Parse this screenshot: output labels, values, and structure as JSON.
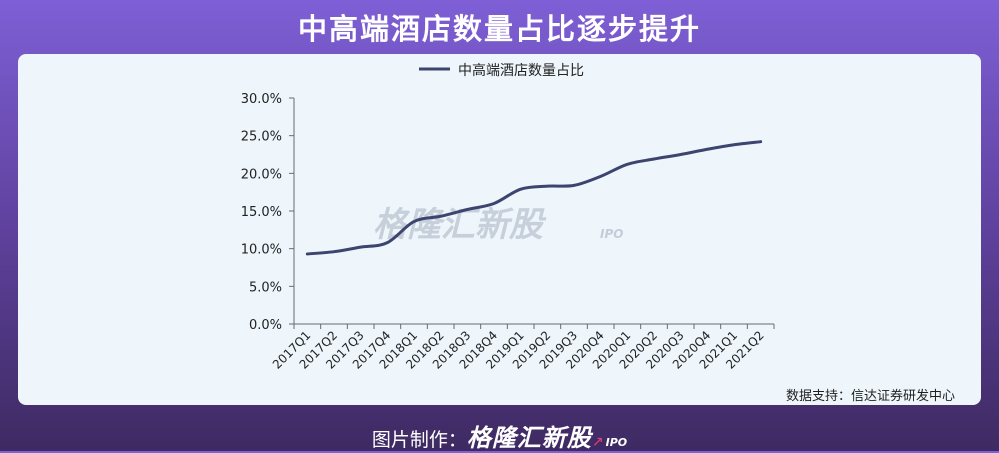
{
  "header": {
    "title": "中高端酒店数量占比逐步提升"
  },
  "source": "数据支持：信达证券研发中心",
  "watermark": {
    "text": "格隆汇新股",
    "sub": "IPO"
  },
  "footer": {
    "label": "图片制作：",
    "brand": "格隆汇新股",
    "brand_sub": "IPO"
  },
  "colors": {
    "line": "#3c4470",
    "axis": "#6b6b6b"
  },
  "chart_data": {
    "type": "line",
    "title": "",
    "xlabel": "",
    "ylabel": "",
    "categories": [
      "2017Q1",
      "2017Q2",
      "2017Q3",
      "2017Q4",
      "2018Q1",
      "2018Q2",
      "2018Q3",
      "2018Q4",
      "2019Q1",
      "2019Q2",
      "2019Q3",
      "2020Q4",
      "2020Q1",
      "2020Q2",
      "2020Q3",
      "2020Q4",
      "2021Q1",
      "2021Q2"
    ],
    "series": [
      {
        "name": "中高端酒店数量占比",
        "values": [
          9.3,
          9.6,
          10.2,
          10.8,
          13.6,
          14.3,
          15.2,
          16.0,
          17.9,
          18.3,
          18.4,
          19.6,
          21.2,
          21.9,
          22.5,
          23.2,
          23.8,
          24.2
        ]
      }
    ],
    "ylim": [
      0,
      30
    ],
    "yticks": [
      "0.0%",
      "5.0%",
      "10.0%",
      "15.0%",
      "20.0%",
      "25.0%",
      "30.0%"
    ],
    "ytick_values": [
      0,
      5,
      10,
      15,
      20,
      25,
      30
    ],
    "grid": false,
    "legend": "top-center"
  }
}
